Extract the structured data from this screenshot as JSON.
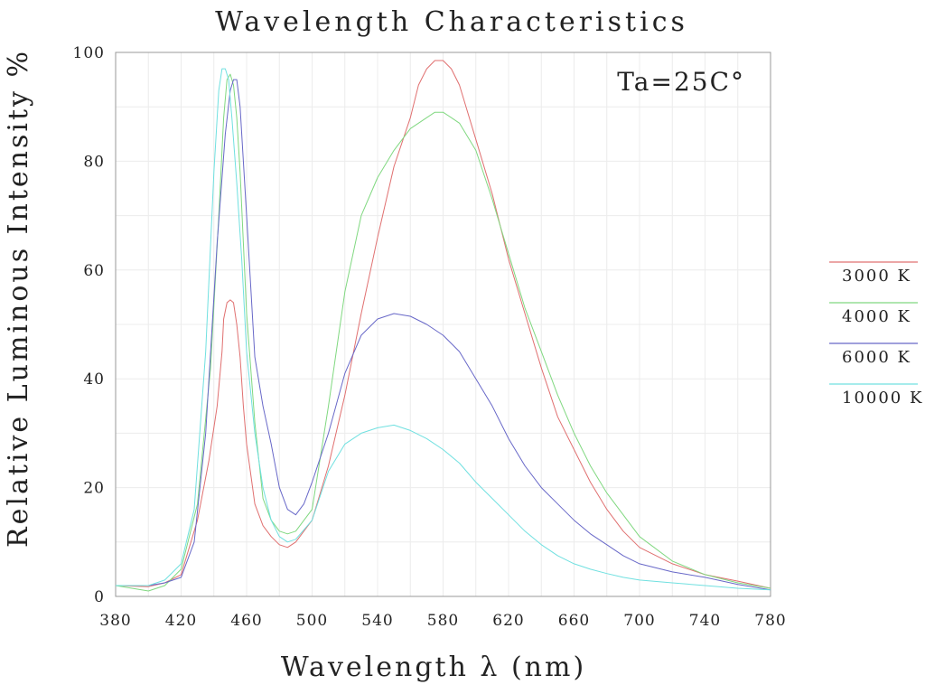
{
  "chart_data": {
    "type": "line",
    "title": "Wavelength Characteristics",
    "xlabel": "Wavelength  λ (nm)",
    "ylabel": "Relative Luminous Intensity %",
    "annotation": "Ta=25C°",
    "xlim": [
      380,
      780
    ],
    "ylim": [
      0,
      100
    ],
    "xticks": [
      380,
      420,
      460,
      500,
      540,
      580,
      620,
      660,
      700,
      740,
      780
    ],
    "yticks": [
      0,
      20,
      40,
      60,
      80,
      100
    ],
    "grid": true,
    "legend_position": "right",
    "series": [
      {
        "name": "3000 K",
        "color": "#e07070",
        "points": [
          [
            380,
            2
          ],
          [
            400,
            1.8
          ],
          [
            410,
            2.5
          ],
          [
            420,
            4
          ],
          [
            430,
            14
          ],
          [
            437,
            25
          ],
          [
            442,
            35
          ],
          [
            445,
            45
          ],
          [
            446,
            51
          ],
          [
            448,
            54
          ],
          [
            450,
            54.5
          ],
          [
            452,
            54
          ],
          [
            454,
            50
          ],
          [
            456,
            44
          ],
          [
            458,
            35
          ],
          [
            460,
            28
          ],
          [
            465,
            17
          ],
          [
            470,
            13
          ],
          [
            475,
            11
          ],
          [
            480,
            9.5
          ],
          [
            485,
            9
          ],
          [
            490,
            10
          ],
          [
            500,
            14
          ],
          [
            510,
            24
          ],
          [
            520,
            37
          ],
          [
            530,
            52
          ],
          [
            540,
            66
          ],
          [
            550,
            79
          ],
          [
            560,
            88
          ],
          [
            565,
            94
          ],
          [
            570,
            97
          ],
          [
            575,
            98.5
          ],
          [
            580,
            98.5
          ],
          [
            585,
            97
          ],
          [
            590,
            94
          ],
          [
            600,
            84
          ],
          [
            610,
            74
          ],
          [
            620,
            62
          ],
          [
            630,
            52
          ],
          [
            640,
            42
          ],
          [
            650,
            33
          ],
          [
            660,
            27
          ],
          [
            670,
            21
          ],
          [
            680,
            16
          ],
          [
            690,
            12
          ],
          [
            700,
            9
          ],
          [
            720,
            6
          ],
          [
            740,
            4
          ],
          [
            760,
            2.8
          ],
          [
            780,
            1.5
          ]
        ]
      },
      {
        "name": "4000 K",
        "color": "#80d880",
        "points": [
          [
            380,
            2
          ],
          [
            400,
            1
          ],
          [
            410,
            2
          ],
          [
            420,
            5
          ],
          [
            430,
            17
          ],
          [
            438,
            42
          ],
          [
            443,
            70
          ],
          [
            446,
            88
          ],
          [
            448,
            95
          ],
          [
            450,
            96
          ],
          [
            452,
            94
          ],
          [
            454,
            88
          ],
          [
            456,
            78
          ],
          [
            458,
            65
          ],
          [
            460,
            52
          ],
          [
            465,
            32
          ],
          [
            470,
            18
          ],
          [
            475,
            14
          ],
          [
            480,
            12
          ],
          [
            485,
            11.5
          ],
          [
            490,
            12
          ],
          [
            500,
            16
          ],
          [
            510,
            35
          ],
          [
            520,
            56
          ],
          [
            530,
            70
          ],
          [
            540,
            77
          ],
          [
            550,
            82
          ],
          [
            560,
            86
          ],
          [
            570,
            88
          ],
          [
            575,
            89
          ],
          [
            580,
            89
          ],
          [
            585,
            88
          ],
          [
            590,
            87
          ],
          [
            600,
            82
          ],
          [
            610,
            73
          ],
          [
            620,
            63
          ],
          [
            630,
            53
          ],
          [
            640,
            45
          ],
          [
            650,
            37
          ],
          [
            660,
            30
          ],
          [
            670,
            24
          ],
          [
            680,
            19
          ],
          [
            690,
            15
          ],
          [
            700,
            11
          ],
          [
            720,
            6.5
          ],
          [
            740,
            4
          ],
          [
            760,
            2.5
          ],
          [
            780,
            1.5
          ]
        ]
      },
      {
        "name": "6000 K",
        "color": "#6868c8",
        "points": [
          [
            380,
            2
          ],
          [
            400,
            2
          ],
          [
            410,
            2.5
          ],
          [
            420,
            3.5
          ],
          [
            428,
            10
          ],
          [
            435,
            30
          ],
          [
            442,
            65
          ],
          [
            447,
            85
          ],
          [
            450,
            93
          ],
          [
            452,
            95
          ],
          [
            454,
            95
          ],
          [
            456,
            90
          ],
          [
            458,
            80
          ],
          [
            460,
            70
          ],
          [
            465,
            44
          ],
          [
            470,
            35
          ],
          [
            475,
            28
          ],
          [
            480,
            20
          ],
          [
            485,
            16
          ],
          [
            490,
            15
          ],
          [
            495,
            17
          ],
          [
            500,
            21
          ],
          [
            510,
            30
          ],
          [
            520,
            41
          ],
          [
            530,
            48
          ],
          [
            540,
            51
          ],
          [
            550,
            52
          ],
          [
            560,
            51.5
          ],
          [
            570,
            50
          ],
          [
            580,
            48
          ],
          [
            590,
            45
          ],
          [
            600,
            40
          ],
          [
            610,
            35
          ],
          [
            620,
            29
          ],
          [
            630,
            24
          ],
          [
            640,
            20
          ],
          [
            650,
            17
          ],
          [
            660,
            14
          ],
          [
            670,
            11.5
          ],
          [
            680,
            9.5
          ],
          [
            690,
            7.5
          ],
          [
            700,
            6
          ],
          [
            720,
            4.5
          ],
          [
            740,
            3.5
          ],
          [
            760,
            2.2
          ],
          [
            780,
            1.2
          ]
        ]
      },
      {
        "name": "10000 K",
        "color": "#70e0e0",
        "points": [
          [
            380,
            2
          ],
          [
            400,
            2
          ],
          [
            410,
            3
          ],
          [
            420,
            6
          ],
          [
            428,
            16
          ],
          [
            435,
            45
          ],
          [
            440,
            78
          ],
          [
            443,
            93
          ],
          [
            445,
            97
          ],
          [
            447,
            97
          ],
          [
            449,
            95
          ],
          [
            451,
            88
          ],
          [
            454,
            76
          ],
          [
            457,
            62
          ],
          [
            460,
            45
          ],
          [
            465,
            30
          ],
          [
            470,
            20
          ],
          [
            475,
            14
          ],
          [
            480,
            11
          ],
          [
            485,
            10
          ],
          [
            490,
            10.5
          ],
          [
            500,
            14
          ],
          [
            510,
            23
          ],
          [
            520,
            28
          ],
          [
            530,
            30
          ],
          [
            540,
            31
          ],
          [
            550,
            31.5
          ],
          [
            560,
            30.5
          ],
          [
            570,
            29
          ],
          [
            580,
            27
          ],
          [
            590,
            24.5
          ],
          [
            600,
            21
          ],
          [
            610,
            18
          ],
          [
            620,
            15
          ],
          [
            630,
            12
          ],
          [
            640,
            9.5
          ],
          [
            650,
            7.5
          ],
          [
            660,
            6
          ],
          [
            670,
            5
          ],
          [
            680,
            4.2
          ],
          [
            690,
            3.5
          ],
          [
            700,
            3
          ],
          [
            720,
            2.5
          ],
          [
            740,
            2
          ],
          [
            760,
            1.5
          ],
          [
            780,
            1.2
          ]
        ]
      }
    ]
  }
}
